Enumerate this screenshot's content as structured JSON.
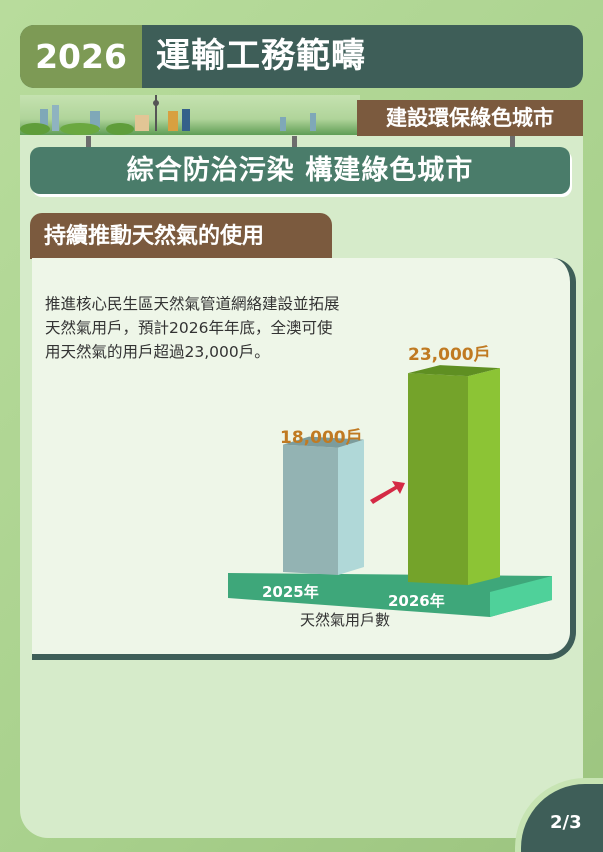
{
  "header": {
    "year": "2026",
    "title": "運輸工務範疇"
  },
  "category_tag": "建設環保綠色城市",
  "subtitle": "綜合防治污染 構建綠色城市",
  "section_title": "持續推動天然氣的使用",
  "description": "推進核心民生區天然氣管道網絡建設並拓展天然氣用戶，預計2026年年底，全澳可使用天然氣的用戶超過23,000戶。",
  "page_indicator": "2/3",
  "chart_data": {
    "type": "bar",
    "title": "",
    "xlabel": "天然氣用戶數",
    "ylabel": "",
    "categories": [
      "2025年",
      "2026年"
    ],
    "values": [
      18000,
      23000
    ],
    "data_labels": [
      "18,000戶",
      "23,000戶"
    ],
    "colors": [
      "#93b3b3",
      "#74a32a"
    ],
    "arrow_color": "#d42a45",
    "grid": false
  }
}
